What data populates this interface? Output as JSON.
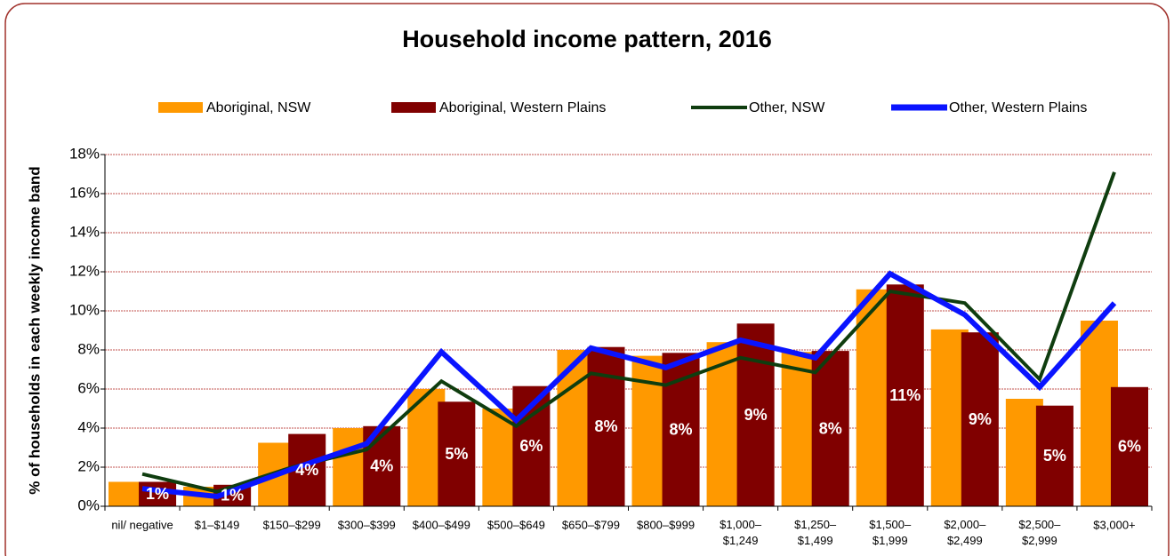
{
  "chart_data": {
    "type": "bar-line",
    "title": "Household income pattern, 2016",
    "y_label": "% of households in each weekly income band",
    "categories": [
      "nil/ negative",
      "$1–$149",
      "$150–$299",
      "$300–$399",
      "$400–$499",
      "$500–$649",
      "$650–$799",
      "$800–$999",
      "$1,000–$1,249",
      "$1,250–$1,499",
      "$1,500–$1,999",
      "$2,000–$2,499",
      "$2,500–$2,999",
      "$3,000+"
    ],
    "series": [
      {
        "name": "Aboriginal, NSW",
        "type": "bar",
        "color": "#ff9900",
        "values": [
          1.25,
          1.0,
          3.25,
          4.0,
          6.0,
          5.0,
          8.0,
          7.7,
          8.4,
          7.9,
          11.1,
          9.05,
          5.5,
          9.5
        ]
      },
      {
        "name": "Aboriginal, Western Plains",
        "type": "bar",
        "color": "#800000",
        "values": [
          1.25,
          1.1,
          3.7,
          4.1,
          5.35,
          6.15,
          8.15,
          7.85,
          9.35,
          7.95,
          11.35,
          8.9,
          5.15,
          6.1
        ],
        "value_labels": [
          "1%",
          "1%",
          "4%",
          "4%",
          "5%",
          "6%",
          "8%",
          "8%",
          "9%",
          "8%",
          "11%",
          "9%",
          "5%",
          "6%"
        ]
      },
      {
        "name": "Other, NSW",
        "type": "line",
        "color": "#0f3d0f",
        "values": [
          1.65,
          0.75,
          2.0,
          2.9,
          6.4,
          4.1,
          6.8,
          6.2,
          7.6,
          6.85,
          11.0,
          10.4,
          6.5,
          17.1
        ]
      },
      {
        "name": "Other, Western Plains",
        "type": "line",
        "color": "#0a14ff",
        "values": [
          0.9,
          0.5,
          1.9,
          3.2,
          7.9,
          4.4,
          8.1,
          7.1,
          8.5,
          7.6,
          11.9,
          9.8,
          6.1,
          10.4
        ]
      }
    ],
    "ylim": [
      0,
      18
    ],
    "yticks": [
      {
        "value": 0,
        "label": "0%"
      },
      {
        "value": 2,
        "label": "2%"
      },
      {
        "value": 4,
        "label": "4%"
      },
      {
        "value": 6,
        "label": "6%"
      },
      {
        "value": 8,
        "label": "8%"
      },
      {
        "value": 10,
        "label": "10%"
      },
      {
        "value": 12,
        "label": "12%"
      },
      {
        "value": 14,
        "label": "14%"
      },
      {
        "value": 16,
        "label": "16%"
      },
      {
        "value": 18,
        "label": "18%"
      }
    ],
    "grid": true
  }
}
